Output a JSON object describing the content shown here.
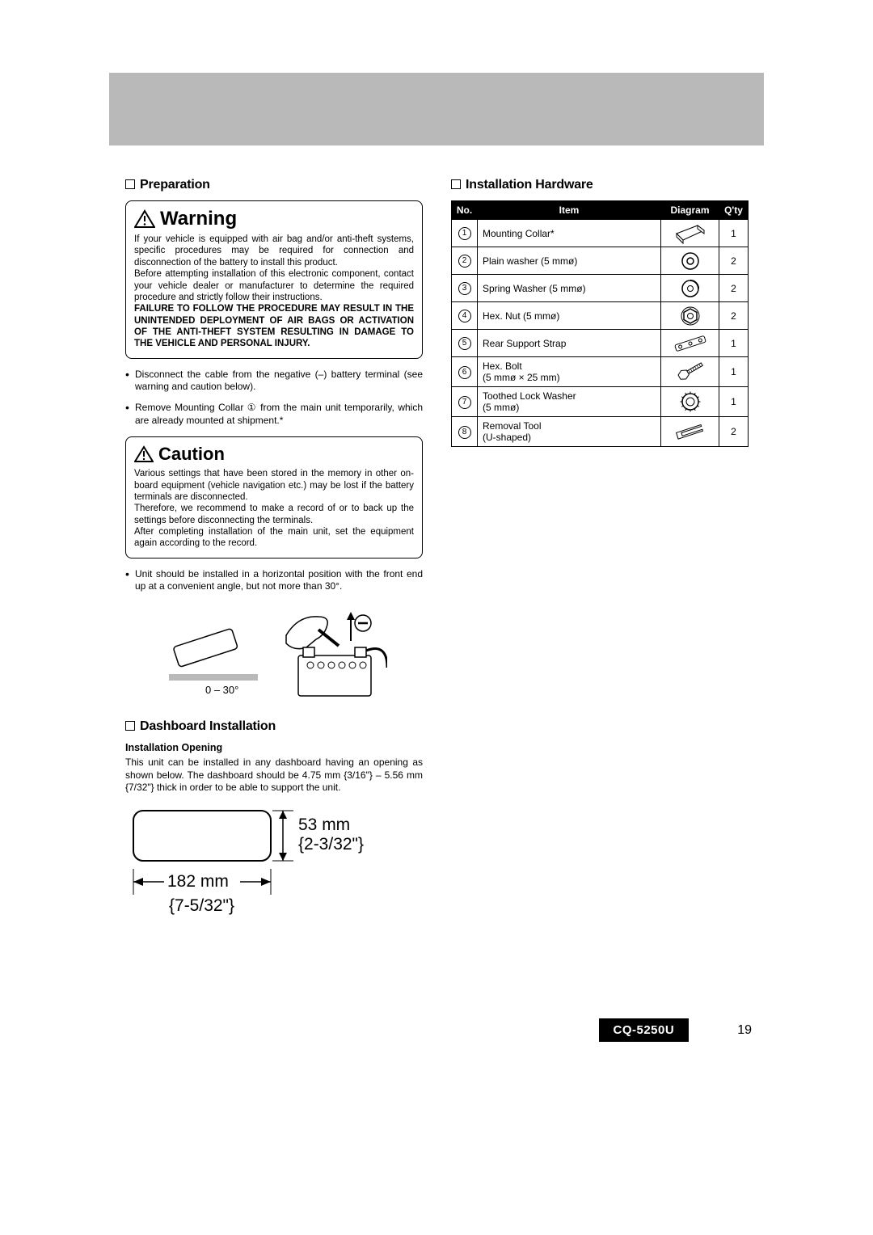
{
  "left": {
    "preparation_heading": "Preparation",
    "warning_title": "Warning",
    "warning_body_1": "If your vehicle is equipped with air bag and/or anti-theft systems, specific procedures may be required for connection and disconnection of the battery to install this product.",
    "warning_body_2": "Before attempting installation of this electronic component, contact your vehicle dealer or manufacturer to determine the required procedure and strictly follow their instructions.",
    "warning_body_3_bold": "FAILURE TO FOLLOW THE PROCEDURE MAY RESULT IN THE UNINTENDED DEPLOYMENT OF AIR BAGS OR ACTIVATION OF THE ANTI-THEFT SYSTEM RESULTING IN DAMAGE TO THE VEHICLE AND PERSONAL INJURY.",
    "bullet1": "Disconnect the cable from the negative (–) battery terminal (see warning and caution below).",
    "bullet2": "Remove Mounting Collar ① from the main unit temporarily, which are already mounted at shipment.*",
    "caution_title": "Caution",
    "caution_body_1": "Various settings that have been stored in the memory in other on-board equipment (vehicle navigation etc.) may be lost if the battery terminals are disconnected.",
    "caution_body_2": "Therefore, we recommend to make a record of or to back up the settings before disconnecting the terminals.",
    "caution_body_3": "After completing installation of the main unit, set the equipment again according to the record.",
    "bullet3": "Unit should be installed in a horizontal position with the front end up at a convenient angle, but not more than 30°.",
    "fig1_angle": "0 – 30°",
    "dashboard_heading": "Dashboard Installation",
    "opening_subhead": "Installation Opening",
    "opening_para": "This unit can be installed in any dashboard having an opening as shown below. The dashboard should be 4.75 mm {3/16\"} – 5.56 mm {7/32\"} thick in order to be able to support the unit.",
    "dim_h_mm": "53 mm",
    "dim_h_in": "{2-3/32\"}",
    "dim_w_mm": "182 mm",
    "dim_w_in": "{7-5/32\"}"
  },
  "right": {
    "hardware_heading": "Installation Hardware",
    "headers": {
      "no": "No.",
      "item": "Item",
      "diagram": "Diagram",
      "qty": "Q'ty"
    },
    "rows": [
      {
        "n": "1",
        "item": "Mounting Collar*",
        "qty": "1",
        "icon": "collar"
      },
      {
        "n": "2",
        "item": "Plain washer (5 mmø)",
        "qty": "2",
        "icon": "plainwasher"
      },
      {
        "n": "3",
        "item": "Spring Washer (5 mmø)",
        "qty": "2",
        "icon": "springwasher"
      },
      {
        "n": "4",
        "item": "Hex. Nut (5 mmø)",
        "qty": "2",
        "icon": "hexnut"
      },
      {
        "n": "5",
        "item": "Rear Support Strap",
        "qty": "1",
        "icon": "strap"
      },
      {
        "n": "6",
        "item": "Hex. Bolt\n(5 mmø × 25 mm)",
        "qty": "1",
        "icon": "hexbolt"
      },
      {
        "n": "7",
        "item": "Toothed Lock Washer\n(5 mmø)",
        "qty": "1",
        "icon": "toothed"
      },
      {
        "n": "8",
        "item": "Removal Tool\n(U-shaped)",
        "qty": "2",
        "icon": "utool"
      }
    ]
  },
  "footer": {
    "model": "CQ-5250U",
    "page": "19"
  },
  "style": {
    "band_color": "#b9b9b9",
    "text_color": "#000000",
    "fonts": {
      "body_pt": 12,
      "heading_pt": 16,
      "warning_pt": 24
    }
  }
}
